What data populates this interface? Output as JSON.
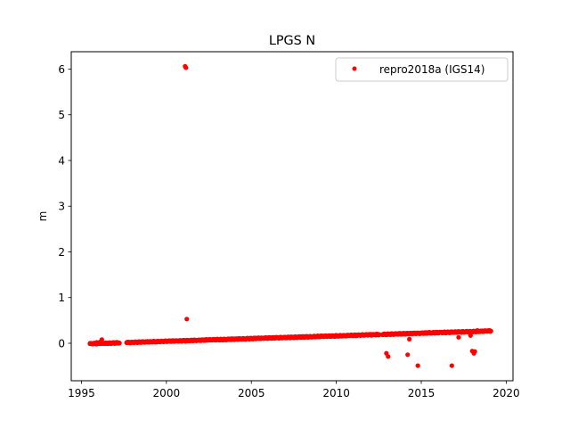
{
  "chart_data": {
    "type": "scatter",
    "title": "LPGS N",
    "xlabel": "",
    "ylabel": "m",
    "xlim": [
      1994.4,
      2020.4
    ],
    "ylim": [
      -0.82,
      6.38
    ],
    "xticks": [
      1995,
      2000,
      2005,
      2010,
      2015,
      2020
    ],
    "xtick_labels": [
      "1995",
      "2000",
      "2005",
      "2010",
      "2015",
      "2020"
    ],
    "yticks": [
      0,
      1,
      2,
      3,
      4,
      5,
      6
    ],
    "ytick_labels": [
      "0",
      "1",
      "2",
      "3",
      "4",
      "5",
      "6"
    ],
    "grid": false,
    "legend_position": "upper right",
    "series": [
      {
        "name": "repro2018a (IGS14)",
        "color": "#ff0000",
        "marker": "circle",
        "trend": {
          "x_start": 1995.5,
          "x_end": 2019.1,
          "y_start": -0.01,
          "y_end": 0.27
        },
        "gaps": [
          [
            1997.25,
            1997.65
          ],
          [
            2012.55,
            2012.7
          ]
        ],
        "points": [
          [
            1996.2,
            0.08
          ],
          [
            1996.1,
            0.03
          ],
          [
            1995.9,
            0.02
          ],
          [
            2001.1,
            6.06
          ],
          [
            2001.15,
            6.03
          ],
          [
            2001.2,
            0.53
          ],
          [
            2012.95,
            -0.22
          ],
          [
            2013.05,
            -0.29
          ],
          [
            2014.2,
            -0.25
          ],
          [
            2014.3,
            0.09
          ],
          [
            2014.8,
            -0.49
          ],
          [
            2016.8,
            -0.49
          ],
          [
            2017.2,
            0.13
          ],
          [
            2017.9,
            0.17
          ],
          [
            2018.0,
            -0.17
          ],
          [
            2018.1,
            -0.22
          ],
          [
            2018.15,
            -0.18
          ],
          [
            2018.3,
            0.28
          ]
        ]
      }
    ]
  }
}
